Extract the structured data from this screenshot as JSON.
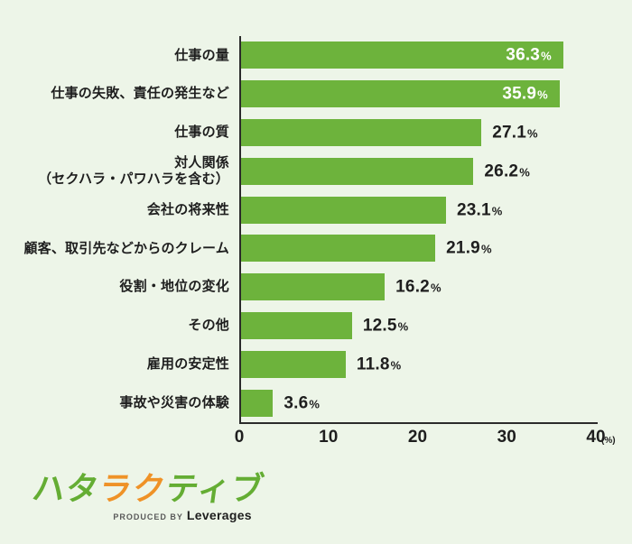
{
  "chart_data": {
    "type": "bar",
    "orientation": "horizontal",
    "title": "",
    "categories": [
      "仕事の量",
      "仕事の失敗、責任の発生など",
      "仕事の質",
      "対人関係\n（セクハラ・パワハラを含む）",
      "会社の将来性",
      "顧客、取引先などからのクレーム",
      "役割・地位の変化",
      "その他",
      "雇用の安定性",
      "事故や災害の体験"
    ],
    "values": [
      36.3,
      35.9,
      27.1,
      26.2,
      23.1,
      21.9,
      16.2,
      12.5,
      11.8,
      3.6
    ],
    "value_labels": [
      "36.3",
      "35.9",
      "27.1",
      "26.2",
      "23.1",
      "21.9",
      "16.2",
      "12.5",
      "11.8",
      "3.6"
    ],
    "value_suffix": "%",
    "value_label_position": [
      "inside",
      "inside",
      "outside",
      "outside",
      "outside",
      "outside",
      "outside",
      "outside",
      "outside",
      "outside"
    ],
    "xlim": [
      0,
      40
    ],
    "x_ticks": [
      "0",
      "10",
      "20",
      "30",
      "40"
    ],
    "x_unit": "(%)",
    "grid": false,
    "legend": false,
    "bar_color": "#6db33c",
    "inside_label_color": "#ffffff",
    "outside_label_color": "#1e1e1e"
  },
  "footer": {
    "logo_segments": [
      {
        "text": "ハタ",
        "color": "#64ad33"
      },
      {
        "text": "ラク",
        "color": "#ef9227"
      },
      {
        "text": "ティブ",
        "color": "#64ad33"
      }
    ],
    "tagline_small": "PRODUCED BY",
    "tagline_brand": "Leverages"
  },
  "colors": {
    "background": "#edf5e8",
    "axis": "#2b2b2b",
    "bar": "#6db33c",
    "logo_green": "#64ad33",
    "logo_orange": "#ef9227"
  }
}
